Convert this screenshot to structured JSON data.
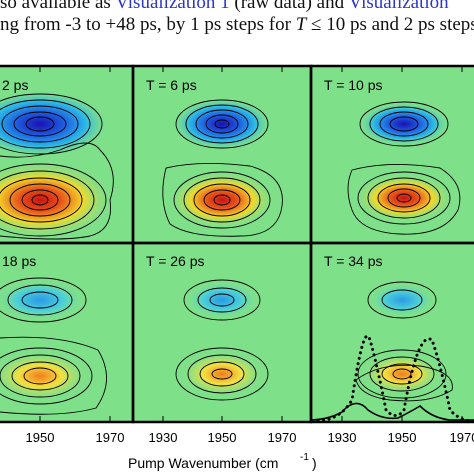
{
  "caption": {
    "line1_prefix": "so available as ",
    "line1_link1": "Visualization 1",
    "line1_mid": " (raw data) and ",
    "line1_link2": "Visualization",
    "line2_prefix": "ng from -3 to +48 ps, by 1 ps steps for ",
    "line2_T": "T",
    "line2_suffix": " ≤ 10 ps and 2 ps steps f"
  },
  "panels": [
    {
      "label": "2 ps"
    },
    {
      "label": "T = 6 ps"
    },
    {
      "label": "T = 10 ps"
    },
    {
      "label": "18 ps"
    },
    {
      "label": "T = 26 ps"
    },
    {
      "label": "T = 34 ps"
    }
  ],
  "x_axis": {
    "label": "Pump Wavenumber (cm",
    "label_exp": "-1",
    "label_close": ")",
    "ticks": [
      "1950",
      "1970",
      "1930",
      "1950",
      "1970",
      "1930",
      "1950",
      "1970"
    ]
  },
  "colors": {
    "background": "#7fe08a",
    "negative": "#1238c8",
    "positive": "#d43a1a",
    "frame": "#000000",
    "link": "#2b35c8"
  }
}
